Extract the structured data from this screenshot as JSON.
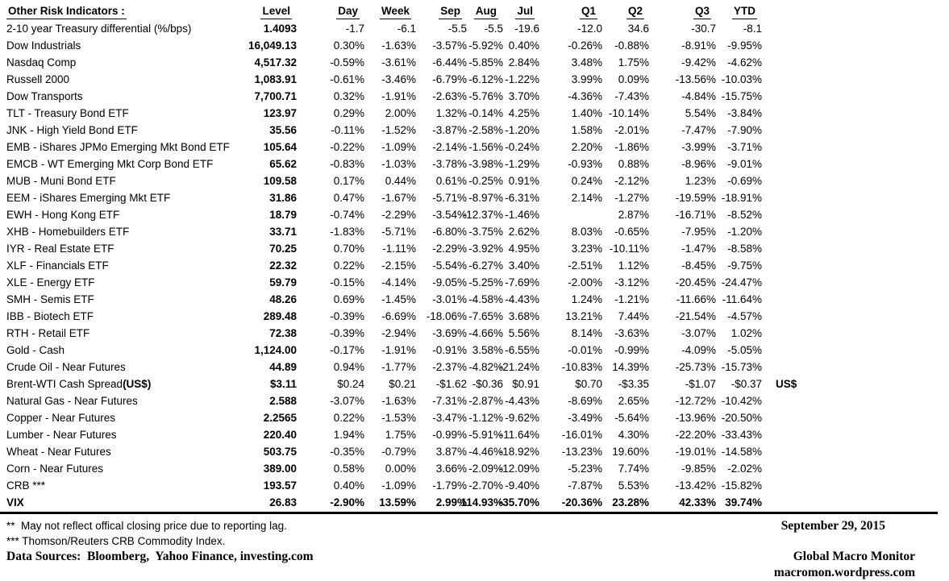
{
  "table": {
    "title": "Other Risk Indicators :",
    "columns": [
      "Level",
      "Day",
      "Week",
      "Sep",
      "Aug",
      "Jul",
      "Q1",
      "Q2",
      "Q3",
      "YTD"
    ],
    "rows": [
      {
        "label": "2-10 year Treasury differential (%/bps)",
        "label_bold": "",
        "level": "1.4093",
        "values": [
          "-1.7",
          "-6.1",
          "-5.5",
          "-5.5",
          "-19.6",
          "-12.0",
          "34.6",
          "-30.7",
          "-8.1"
        ],
        "note": "",
        "bold": false
      },
      {
        "label": "Dow Industrials",
        "label_bold": "",
        "level": "16,049.13",
        "values": [
          "0.30%",
          "-1.63%",
          "-3.57%",
          "-5.92%",
          "0.40%",
          "-0.26%",
          "-0.88%",
          "-8.91%",
          "-9.95%"
        ],
        "note": "",
        "bold": false
      },
      {
        "label": "Nasdaq Comp",
        "label_bold": "",
        "level": "4,517.32",
        "values": [
          "-0.59%",
          "-3.61%",
          "-6.44%",
          "-5.85%",
          "2.84%",
          "3.48%",
          "1.75%",
          "-9.42%",
          "-4.62%"
        ],
        "note": "",
        "bold": false
      },
      {
        "label": "Russell 2000",
        "label_bold": "",
        "level": "1,083.91",
        "values": [
          "-0.61%",
          "-3.46%",
          "-6.79%",
          "-6.12%",
          "-1.22%",
          "3.99%",
          "0.09%",
          "-13.56%",
          "-10.03%"
        ],
        "note": "",
        "bold": false
      },
      {
        "label": "Dow Transports",
        "label_bold": "",
        "level": "7,700.71",
        "values": [
          "0.32%",
          "-1.91%",
          "-2.63%",
          "-5.76%",
          "3.70%",
          "-4.36%",
          "-7.43%",
          "-4.84%",
          "-15.75%"
        ],
        "note": "",
        "bold": false
      },
      {
        "label": "TLT - Treasury Bond ETF",
        "label_bold": "",
        "level": "123.97",
        "values": [
          "0.29%",
          "2.00%",
          "1.32%",
          "-0.14%",
          "4.25%",
          "1.40%",
          "-10.14%",
          "5.54%",
          "-3.84%"
        ],
        "note": "",
        "bold": false
      },
      {
        "label": "JNK - High Yield Bond ETF",
        "label_bold": "",
        "level": "35.56",
        "values": [
          "-0.11%",
          "-1.52%",
          "-3.87%",
          "-2.58%",
          "-1.20%",
          "1.58%",
          "-2.01%",
          "-7.47%",
          "-7.90%"
        ],
        "note": "",
        "bold": false
      },
      {
        "label": "EMB - iShares JPMo Emerging Mkt Bond ETF",
        "label_bold": "",
        "level": "105.64",
        "values": [
          "-0.22%",
          "-1.09%",
          "-2.14%",
          "-1.56%",
          "-0.24%",
          "2.20%",
          "-1.86%",
          "-3.99%",
          "-3.71%"
        ],
        "note": "",
        "bold": false
      },
      {
        "label": "EMCB - WT Emerging Mkt Corp Bond ETF",
        "label_bold": "",
        "level": "65.62",
        "values": [
          "-0.83%",
          "-1.03%",
          "-3.78%",
          "-3.98%",
          "-1.29%",
          "-0.93%",
          "0.88%",
          "-8.96%",
          "-9.01%"
        ],
        "note": "",
        "bold": false
      },
      {
        "label": "MUB - Muni Bond ETF",
        "label_bold": "",
        "level": "109.58",
        "values": [
          "0.17%",
          "0.44%",
          "0.61%",
          "-0.25%",
          "0.91%",
          "0.24%",
          "-2.12%",
          "1.23%",
          "-0.69%"
        ],
        "note": "",
        "bold": false
      },
      {
        "label": "EEM - iShares Emerging Mkt ETF",
        "label_bold": "",
        "level": "31.86",
        "values": [
          "0.47%",
          "-1.67%",
          "-5.71%",
          "-8.97%",
          "-6.31%",
          "2.14%",
          "-1.27%",
          "-19.59%",
          "-18.91%"
        ],
        "note": "",
        "bold": false
      },
      {
        "label": "EWH - Hong Kong ETF",
        "label_bold": "",
        "level": "18.79",
        "values": [
          "-0.74%",
          "-2.29%",
          "-3.54%",
          "-12.37%",
          "-1.46%",
          "",
          "2.87%",
          "-16.71%",
          "-8.52%"
        ],
        "note": "",
        "bold": false
      },
      {
        "label": "XHB - Homebuilders ETF",
        "label_bold": "",
        "level": "33.71",
        "values": [
          "-1.83%",
          "-5.71%",
          "-6.80%",
          "-3.75%",
          "2.62%",
          "8.03%",
          "-0.65%",
          "-7.95%",
          "-1.20%"
        ],
        "note": "",
        "bold": false
      },
      {
        "label": "IYR - Real Estate ETF",
        "label_bold": "",
        "level": "70.25",
        "values": [
          "0.70%",
          "-1.11%",
          "-2.29%",
          "-3.92%",
          "4.95%",
          "3.23%",
          "-10.11%",
          "-1.47%",
          "-8.58%"
        ],
        "note": "",
        "bold": false
      },
      {
        "label": "XLF - Financials ETF",
        "label_bold": "",
        "level": "22.32",
        "values": [
          "0.22%",
          "-2.15%",
          "-5.54%",
          "-6.27%",
          "3.40%",
          "-2.51%",
          "1.12%",
          "-8.45%",
          "-9.75%"
        ],
        "note": "",
        "bold": false
      },
      {
        "label": "XLE - Energy ETF",
        "label_bold": "",
        "level": "59.79",
        "values": [
          "-0.15%",
          "-4.14%",
          "-9.05%",
          "-5.25%",
          "-7.69%",
          "-2.00%",
          "-3.12%",
          "-20.45%",
          "-24.47%"
        ],
        "note": "",
        "bold": false
      },
      {
        "label": "SMH - Semis ETF",
        "label_bold": "",
        "level": "48.26",
        "values": [
          "0.69%",
          "-1.45%",
          "-3.01%",
          "-4.58%",
          "-4.43%",
          "1.24%",
          "-1.21%",
          "-11.66%",
          "-11.64%"
        ],
        "note": "",
        "bold": false
      },
      {
        "label": "IBB - Biotech ETF",
        "label_bold": "",
        "level": "289.48",
        "values": [
          "-0.39%",
          "-6.69%",
          "-18.06%",
          "-7.65%",
          "3.68%",
          "13.21%",
          "7.44%",
          "-21.54%",
          "-4.57%"
        ],
        "note": "",
        "bold": false
      },
      {
        "label": "RTH - Retail ETF",
        "label_bold": "",
        "level": "72.38",
        "values": [
          "-0.39%",
          "-2.94%",
          "-3.69%",
          "-4.66%",
          "5.56%",
          "8.14%",
          "-3.63%",
          "-3.07%",
          "1.02%"
        ],
        "note": "",
        "bold": false
      },
      {
        "label": "Gold - Cash",
        "label_bold": "",
        "level": "1,124.00",
        "values": [
          "-0.17%",
          "-1.91%",
          "-0.91%",
          "3.58%",
          "-6.55%",
          "-0.01%",
          "-0.99%",
          "-4.09%",
          "-5.05%"
        ],
        "note": "",
        "bold": false
      },
      {
        "label": "Crude Oil - Near Futures",
        "label_bold": "",
        "level": "44.89",
        "values": [
          "0.94%",
          "-1.77%",
          "-2.37%",
          "-4.82%",
          "-21.24%",
          "-10.83%",
          "14.39%",
          "-25.73%",
          "-15.73%"
        ],
        "note": "",
        "bold": false
      },
      {
        "label": "Brent-WTI Cash Spread ",
        "label_bold": "(US$)",
        "level": "$3.11",
        "values": [
          "$0.24",
          "$0.21",
          "-$1.62",
          "-$0.36",
          "$0.91",
          "$0.70",
          "-$3.35",
          "-$1.07",
          "-$0.37"
        ],
        "note": "US$",
        "bold": false
      },
      {
        "label": "Natural Gas - Near Futures",
        "label_bold": "",
        "level": "2.588",
        "values": [
          "-3.07%",
          "-1.63%",
          "-7.31%",
          "-2.87%",
          "-4.43%",
          "-8.69%",
          "2.65%",
          "-12.72%",
          "-10.42%"
        ],
        "note": "",
        "bold": false
      },
      {
        "label": "Copper - Near Futures",
        "label_bold": "",
        "level": "2.2565",
        "values": [
          "0.22%",
          "-1.53%",
          "-3.47%",
          "-1.12%",
          "-9.62%",
          "-3.49%",
          "-5.64%",
          "-13.96%",
          "-20.50%"
        ],
        "note": "",
        "bold": false
      },
      {
        "label": "Lumber - Near Futures",
        "label_bold": "",
        "level": "220.40",
        "values": [
          "1.94%",
          "1.75%",
          "-0.99%",
          "-5.91%",
          "-11.64%",
          "-16.01%",
          "4.30%",
          "-22.20%",
          "-33.43%"
        ],
        "note": "",
        "bold": false
      },
      {
        "label": "Wheat - Near Futures",
        "label_bold": "",
        "level": "503.75",
        "values": [
          "-0.35%",
          "-0.79%",
          "3.87%",
          "-4.46%",
          "-18.92%",
          "-13.23%",
          "19.60%",
          "-19.01%",
          "-14.58%"
        ],
        "note": "",
        "bold": false
      },
      {
        "label": "Corn - Near Futures",
        "label_bold": "",
        "level": "389.00",
        "values": [
          "0.58%",
          "0.00%",
          "3.66%",
          "-2.09%",
          "-12.09%",
          "-5.23%",
          "7.74%",
          "-9.85%",
          "-2.02%"
        ],
        "note": "",
        "bold": false
      },
      {
        "label": "CRB ***",
        "label_bold": "",
        "level": "193.57",
        "values": [
          "0.40%",
          "-1.09%",
          "-1.79%",
          "-2.70%",
          "-9.40%",
          "-7.87%",
          "5.53%",
          "-13.42%",
          "-15.82%"
        ],
        "note": "",
        "bold": false
      },
      {
        "label": "VIX",
        "label_bold": "",
        "level": "26.83",
        "values": [
          "-2.90%",
          "13.59%",
          "2.99%",
          "114.93%",
          "-35.70%",
          "-20.36%",
          "23.28%",
          "42.33%",
          "39.74%"
        ],
        "note": "",
        "bold": true
      }
    ]
  },
  "footer": {
    "footnote_lag": "**  May not reflect offical closing price due to reporting lag.",
    "footnote_crb": "*** Thomson/Reuters CRB Commodity Index.",
    "data_sources": "Data Sources:  Bloomberg,  Yahoo Finance, investing.com",
    "date": "September 29, 2015",
    "brand": "Global Macro Monitor",
    "site": "macromon.wordpress.com"
  }
}
